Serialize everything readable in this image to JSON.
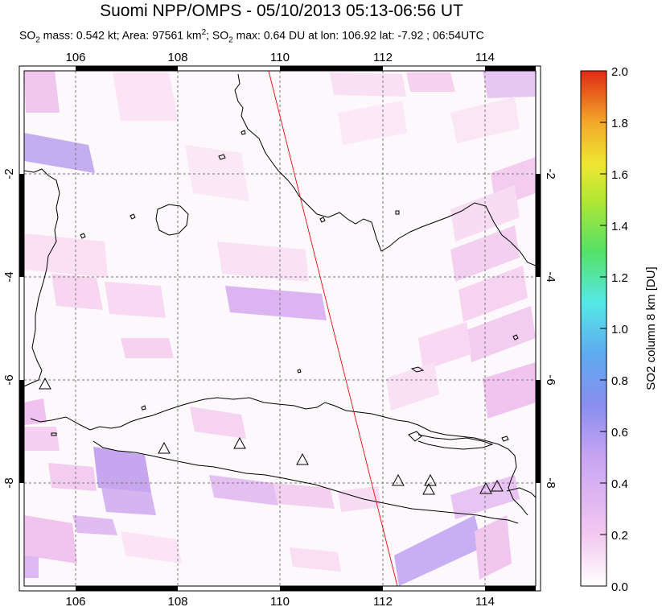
{
  "title": "Suomi NPP/OMPS - 05/10/2013 05:13-06:56 UT",
  "subtitle": {
    "p1": "SO",
    "sub1": "2",
    "p2": " mass: 0.542 kt; Area: 97561 km",
    "sup1": "2",
    "p3": "; SO",
    "sub2": "2",
    "p4": " max: 0.64 DU at lon: 106.92 lat: -7.92 ; 06:54UTC"
  },
  "map": {
    "lon_ticks": [
      "106",
      "108",
      "110",
      "112",
      "114"
    ],
    "lat_ticks_left": [
      "-2",
      "-4",
      "-6",
      "-8"
    ],
    "lat_ticks_right": [
      "-2",
      "-4",
      "-6",
      "-8"
    ],
    "lon_range": [
      105,
      115
    ],
    "lat_range": [
      -10,
      0
    ],
    "gridlines": "dashed",
    "volcano_marker": "triangle-outline",
    "orbit_track_color": "#e02020"
  },
  "colorbar": {
    "label": "SO2 column 8 km [DU]",
    "tick_labels": [
      "2.0",
      "1.8",
      "1.6",
      "1.4",
      "1.2",
      "1.0",
      "0.8",
      "0.6",
      "0.4",
      "0.2",
      "0.0"
    ],
    "range": [
      0,
      2
    ],
    "colormap": [
      "#ffffff",
      "#f3c8f0",
      "#b99af0",
      "#6e8ff0",
      "#55c8f0",
      "#55e8e6",
      "#55e066",
      "#b2e633",
      "#f0e633",
      "#f2b02a",
      "#f06a1a",
      "#e02a14"
    ]
  }
}
